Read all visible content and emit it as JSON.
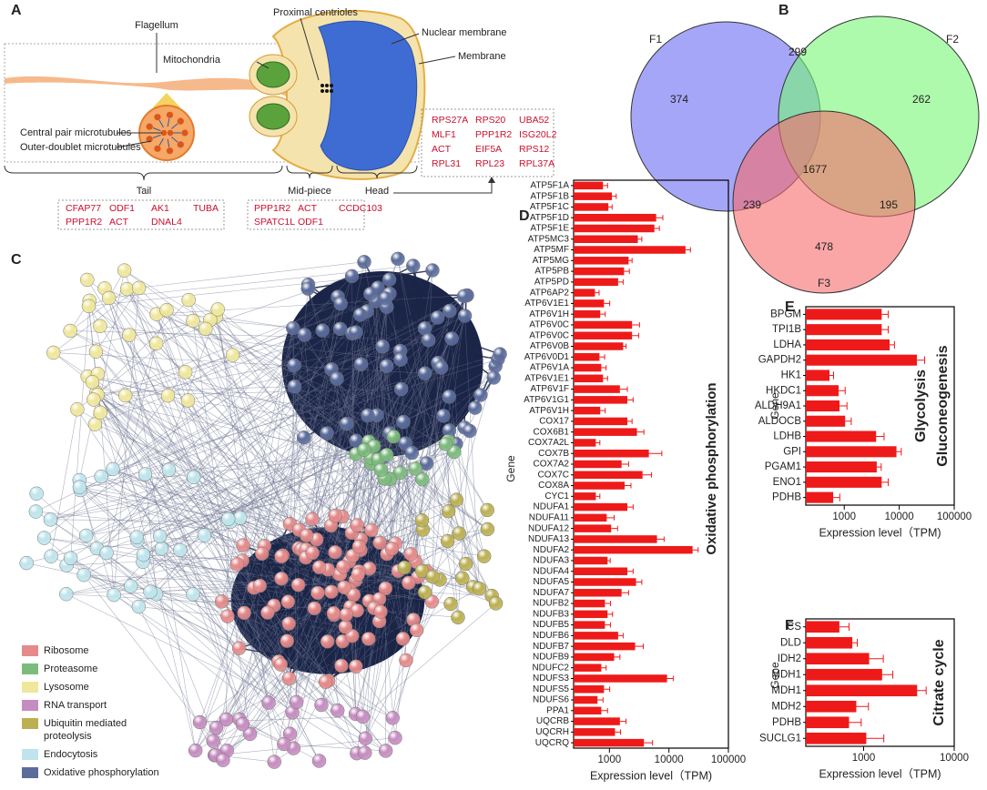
{
  "panel_a": {
    "letter": "A",
    "flagellum": "Flagellum",
    "proximal": "Proximal centrioles",
    "nuclear": "Nuclear membrane",
    "mitochondria": "Mitochondria",
    "membrane": "Membrane",
    "central": "Central pair microtubules",
    "outer": "Outer-doublet microtubules",
    "tail": "Tail",
    "midpiece": "Mid-piece",
    "head": "Head",
    "tail_genes": [
      [
        "CFAP77",
        "ODF1",
        "AK1",
        "TUBA"
      ],
      [
        "PPP1R2",
        "ACT",
        "DNAL4"
      ]
    ],
    "midpiece_genes": [
      [
        "PPP1R2",
        "ACT",
        "CCDC103"
      ],
      [
        "SPATC1L",
        "ODF1"
      ]
    ],
    "head_genes": [
      [
        "RPS27A",
        "RPS20",
        "UBA52"
      ],
      [
        "MLF1",
        "PPP1R2",
        "ISG20L2"
      ],
      [
        "ACT",
        "EIF5A",
        "RPS12"
      ],
      [
        "RPL31",
        "RPL23",
        "RPL37A"
      ]
    ]
  },
  "panel_c": {
    "letter": "C",
    "legend": [
      {
        "lines": [
          "Ribosome"
        ],
        "color": "#e58a8a"
      },
      {
        "lines": [
          "Proteasome"
        ],
        "color": "#7dbb7d"
      },
      {
        "lines": [
          "Lysosome"
        ],
        "color": "#efe79b"
      },
      {
        "lines": [
          "RNA transport"
        ],
        "color": "#c58cc0"
      },
      {
        "lines": [
          "Ubiquitin mediated",
          "proteolysis"
        ],
        "color": "#bcb052"
      },
      {
        "lines": [
          "Endocytosis"
        ],
        "color": "#bfe4ec"
      },
      {
        "lines": [
          "Oxidative phosphorylation"
        ],
        "color": "#5b6c9c"
      }
    ]
  },
  "chart_data": [
    {
      "type": "venn",
      "panel": "B",
      "sets": [
        {
          "name": "F1",
          "color": "#6a6af4"
        },
        {
          "name": "F2",
          "color": "#77f777"
        },
        {
          "name": "F3",
          "color": "#f66a6a"
        }
      ],
      "values": [
        374,
        299,
        262,
        1677,
        239,
        195,
        478
      ]
    },
    {
      "type": "hbar",
      "panel": "D",
      "color": "#ee1a1a",
      "log_x": true,
      "annotation": [
        "Oxidative phosphorylation"
      ],
      "ylabel": "Gene",
      "xlabel": "Expression level（TPM)",
      "xlim": [
        250,
        100000
      ],
      "xticks": [
        1000,
        10000,
        100000
      ],
      "categories": [
        "ATP5F1A",
        "ATP5F1B",
        "ATP5F1C",
        "ATP5F1D",
        "ATP5F1E",
        "ATP5MC3",
        "ATP5MF",
        "ATP5MG",
        "ATP5PB",
        "ATP5PD",
        "ATP6AP2",
        "ATP6V1E1",
        "ATP6V1H",
        "ATP6V0C",
        "ATP6V0C",
        "ATP6V0B",
        "ATP6V0D1",
        "ATP6V1A",
        "ATP6V1E1",
        "ATP6V1F",
        "ATP6V1G1",
        "ATP6V1H",
        "COX17",
        "COX6B1",
        "COX7A2L",
        "COX7B",
        "COX7A2",
        "COX7C",
        "COX8A",
        "CYC1",
        "NDUFA1",
        "NDUFA11",
        "NDUFA12",
        "NDUFA13",
        "NDUFA2",
        "NDUFA3",
        "NDUFA4",
        "NDUFA5",
        "NDUFA7",
        "NDUFB2",
        "NDUFB3",
        "NDUFB5",
        "NDUFB6",
        "NDUFB7",
        "NDUFB9",
        "NDUFC2",
        "NDUFS3",
        "NDUFS5",
        "NDUFS6",
        "PPA1",
        "UQCRB",
        "UQCRH",
        "UQCRQ"
      ],
      "values": [
        780,
        1100,
        960,
        6100,
        5700,
        3000,
        19000,
        2100,
        1760,
        1400,
        570,
        810,
        700,
        2400,
        2400,
        1700,
        680,
        730,
        780,
        1500,
        2000,
        700,
        2000,
        2900,
        590,
        4600,
        1600,
        3600,
        1800,
        590,
        2000,
        900,
        1070,
        6300,
        25000,
        930,
        2000,
        2800,
        1600,
        840,
        930,
        840,
        1400,
        2700,
        1200,
        730,
        9300,
        810,
        630,
        730,
        1500,
        1240,
        3800
      ],
      "errors": [
        150,
        200,
        150,
        1800,
        1200,
        500,
        4000,
        300,
        400,
        300,
        100,
        200,
        150,
        800,
        700,
        200,
        150,
        150,
        150,
        500,
        500,
        150,
        400,
        900,
        100,
        3000,
        500,
        1500,
        500,
        100,
        500,
        300,
        300,
        2000,
        6000,
        100,
        500,
        700,
        500,
        200,
        200,
        200,
        300,
        1000,
        300,
        150,
        2500,
        200,
        150,
        200,
        400,
        300,
        1500
      ]
    },
    {
      "type": "hbar",
      "panel": "E",
      "color": "#ee1a1a",
      "log_x": true,
      "annotation": [
        "Glycolysis",
        "Gluconeogenesis"
      ],
      "ylabel": "Gene",
      "xlabel": "Expression level（TPM)",
      "xlim": [
        200,
        100000
      ],
      "xticks": [
        1000,
        10000,
        100000
      ],
      "categories": [
        "BPGM",
        "TPI1B",
        "LDHA",
        "GAPDH2",
        "HK1",
        "HKDC1",
        "ALDH9A1",
        "ALDOCB",
        "LDHB",
        "GPI",
        "PGAM1",
        "ENO1",
        "PDHB"
      ],
      "values": [
        4800,
        4800,
        6700,
        21000,
        540,
        790,
        820,
        1040,
        3800,
        8900,
        3900,
        4800,
        630
      ],
      "errors": [
        1500,
        1500,
        1500,
        8000,
        100,
        250,
        300,
        300,
        1500,
        2000,
        800,
        1500,
        200
      ]
    },
    {
      "type": "hbar",
      "panel": "F",
      "color": "#ee1a1a",
      "log_x": true,
      "annotation": [
        "Citrate cycle"
      ],
      "ylabel": "Gene",
      "xlabel": "Expression level（TPM)",
      "xlim": [
        230,
        10000
      ],
      "xticks": [
        1000,
        10000
      ],
      "categories": [
        "CS",
        "DLD",
        "IDH2",
        "MDH1",
        "MDH1",
        "MDH2",
        "PDHB",
        "SUCLG1"
      ],
      "values": [
        540,
        750,
        1150,
        1600,
        3900,
        830,
        690,
        1070
      ],
      "errors": [
        150,
        100,
        500,
        500,
        1000,
        300,
        250,
        600
      ]
    }
  ]
}
